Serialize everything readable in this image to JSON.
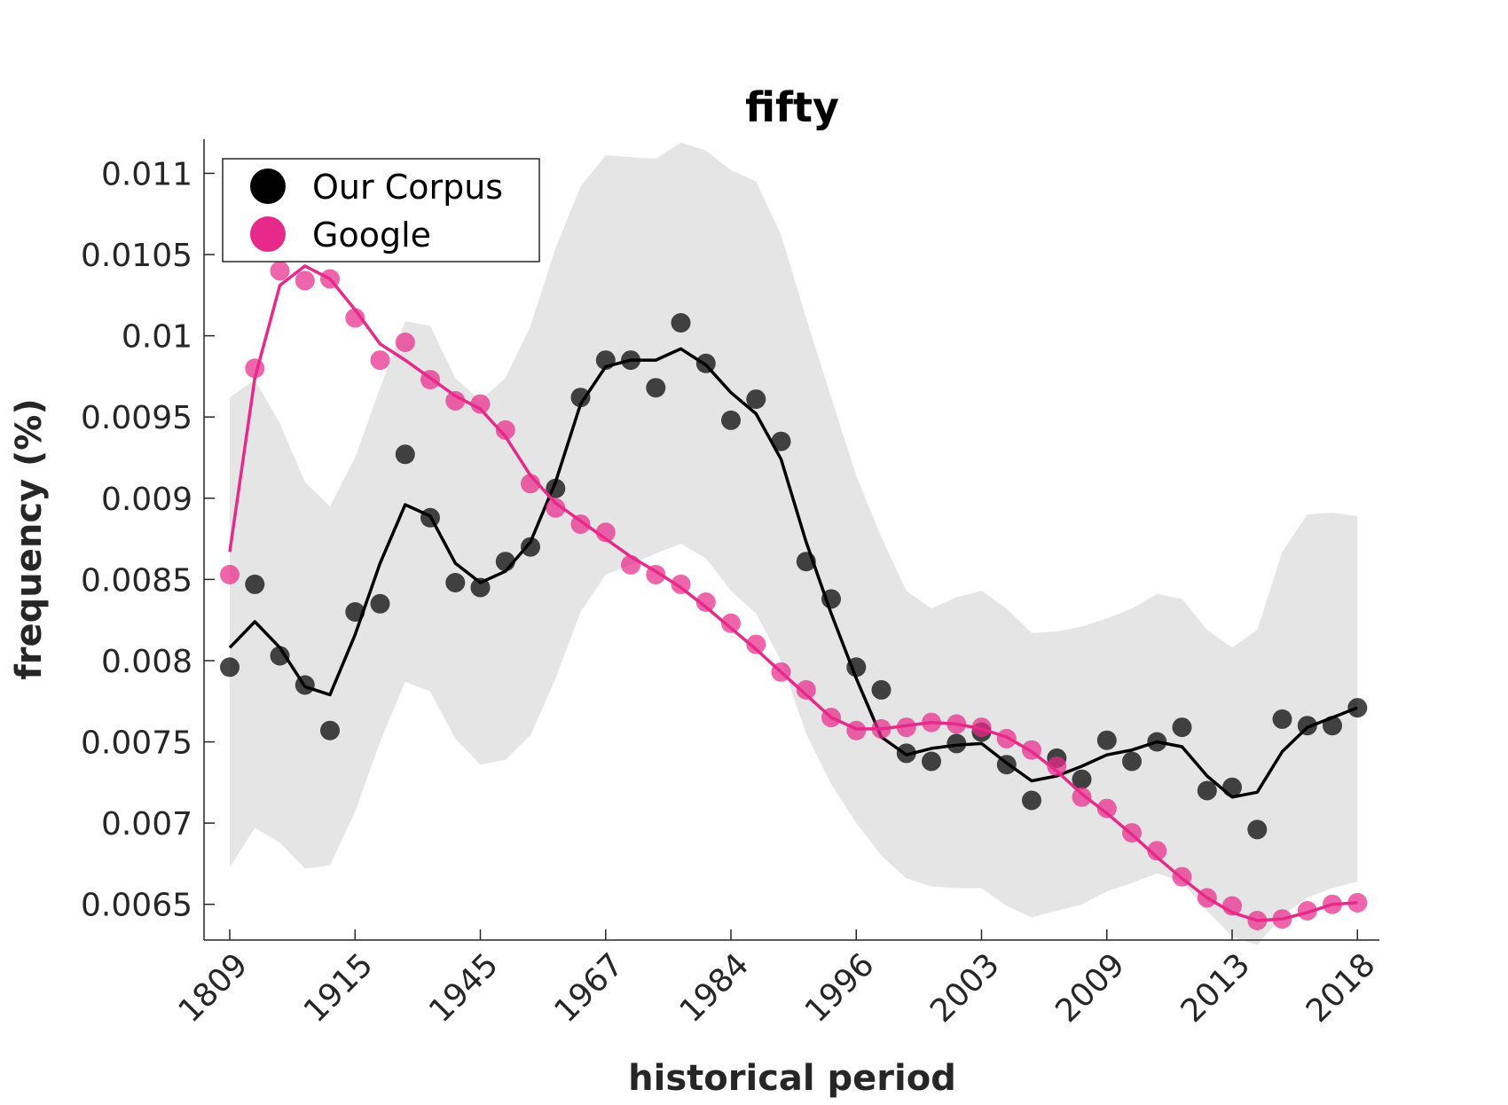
{
  "chart_data": {
    "type": "line",
    "title": "fifty",
    "xlabel": "historical period",
    "ylabel": "frequency (%)",
    "x_tick_labels": [
      "1809",
      "1915",
      "1945",
      "1967",
      "1984",
      "1996",
      "2003",
      "2009",
      "2013",
      "2018"
    ],
    "y_ticks": [
      0.0065,
      0.007,
      0.0075,
      0.008,
      0.0085,
      0.009,
      0.0095,
      0.01,
      0.0105,
      0.011
    ],
    "y_tick_labels": [
      "0.0065",
      "0.007",
      "0.0075",
      "0.008",
      "0.0085",
      "0.009",
      "0.0095",
      "0.01",
      "0.0105",
      "0.011"
    ],
    "ylim": [
      0.00628,
      0.01121
    ],
    "legend_position": "top-left",
    "series": [
      {
        "name": "Our Corpus",
        "color": "#000000",
        "points": [
          0.00796,
          0.00847,
          0.00803,
          0.00785,
          0.00757,
          0.0083,
          0.00835,
          0.00927,
          0.00888,
          0.00848,
          0.00845,
          0.00861,
          0.0087,
          0.00906,
          0.00962,
          0.00985,
          0.00985,
          0.00968,
          0.01008,
          0.00983,
          0.00948,
          0.00961,
          0.00935,
          0.00861,
          0.00838,
          0.00796,
          0.00782,
          0.00743,
          0.00738,
          0.00749,
          0.00756,
          0.00736,
          0.00714,
          0.0074,
          0.00727,
          0.00751,
          0.00738,
          0.0075,
          0.00759,
          0.0072,
          0.00722,
          0.00696,
          0.00764,
          0.0076,
          0.0076,
          0.00771
        ],
        "smoothed": [
          0.00808,
          0.00824,
          0.00808,
          0.00784,
          0.00779,
          0.00816,
          0.0086,
          0.00896,
          0.00889,
          0.0086,
          0.00848,
          0.00855,
          0.00873,
          0.0091,
          0.00958,
          0.00981,
          0.00985,
          0.00985,
          0.00992,
          0.00982,
          0.00965,
          0.00952,
          0.00924,
          0.00873,
          0.00829,
          0.00789,
          0.00753,
          0.00742,
          0.00746,
          0.00748,
          0.00749,
          0.00737,
          0.00726,
          0.00729,
          0.00735,
          0.00742,
          0.00745,
          0.0075,
          0.00747,
          0.00729,
          0.00716,
          0.00719,
          0.00744,
          0.00759,
          0.00765,
          0.00771
        ],
        "band_upper": [
          0.00962,
          0.00973,
          0.00946,
          0.0091,
          0.00895,
          0.00925,
          0.00968,
          0.01009,
          0.01006,
          0.00974,
          0.0096,
          0.00974,
          0.01006,
          0.01054,
          0.01092,
          0.01111,
          0.0111,
          0.01109,
          0.01119,
          0.01114,
          0.01102,
          0.01095,
          0.01062,
          0.01011,
          0.00962,
          0.00914,
          0.00876,
          0.00843,
          0.00832,
          0.00839,
          0.00843,
          0.00832,
          0.00817,
          0.00818,
          0.00821,
          0.00826,
          0.00832,
          0.00841,
          0.00838,
          0.00819,
          0.00808,
          0.00819,
          0.00867,
          0.0089,
          0.00891,
          0.00889
        ],
        "band_lower": [
          0.00673,
          0.00697,
          0.00688,
          0.00672,
          0.00674,
          0.00707,
          0.0075,
          0.00787,
          0.00781,
          0.00752,
          0.00736,
          0.00739,
          0.00754,
          0.00789,
          0.0083,
          0.00853,
          0.00859,
          0.00866,
          0.00872,
          0.00863,
          0.00843,
          0.00829,
          0.008,
          0.00755,
          0.00724,
          0.007,
          0.0068,
          0.00666,
          0.00661,
          0.0066,
          0.0066,
          0.00649,
          0.00642,
          0.00646,
          0.0065,
          0.00658,
          0.00663,
          0.00669,
          0.00664,
          0.00646,
          0.0063,
          0.00625,
          0.00643,
          0.00654,
          0.0066,
          0.00664
        ]
      },
      {
        "name": "Google",
        "color": "#e7298a",
        "points": [
          0.00853,
          0.0098,
          0.0104,
          0.01034,
          0.01035,
          0.01011,
          0.00985,
          0.00996,
          0.00973,
          0.0096,
          0.00958,
          0.00942,
          0.00909,
          0.00894,
          0.00884,
          0.00879,
          0.00859,
          0.00853,
          0.00847,
          0.00836,
          0.00823,
          0.0081,
          0.00793,
          0.00782,
          0.00765,
          0.00757,
          0.00758,
          0.00759,
          0.00762,
          0.00761,
          0.00759,
          0.00752,
          0.00745,
          0.00735,
          0.00716,
          0.00709,
          0.00694,
          0.00683,
          0.00667,
          0.00654,
          0.00649,
          0.0064,
          0.00641,
          0.00646,
          0.0065,
          0.00651
        ],
        "smoothed": [
          0.00867,
          0.00974,
          0.01031,
          0.01043,
          0.01035,
          0.01016,
          0.00995,
          0.00985,
          0.00974,
          0.00963,
          0.00955,
          0.00938,
          0.00914,
          0.00897,
          0.00886,
          0.00875,
          0.00864,
          0.00855,
          0.00845,
          0.00833,
          0.0082,
          0.00807,
          0.00793,
          0.00779,
          0.00765,
          0.00758,
          0.00758,
          0.0076,
          0.00762,
          0.00761,
          0.00758,
          0.00753,
          0.00744,
          0.00732,
          0.00718,
          0.00706,
          0.00693,
          0.00679,
          0.00666,
          0.00654,
          0.00645,
          0.0064,
          0.00641,
          0.00645,
          0.0065,
          0.00651
        ]
      }
    ]
  }
}
